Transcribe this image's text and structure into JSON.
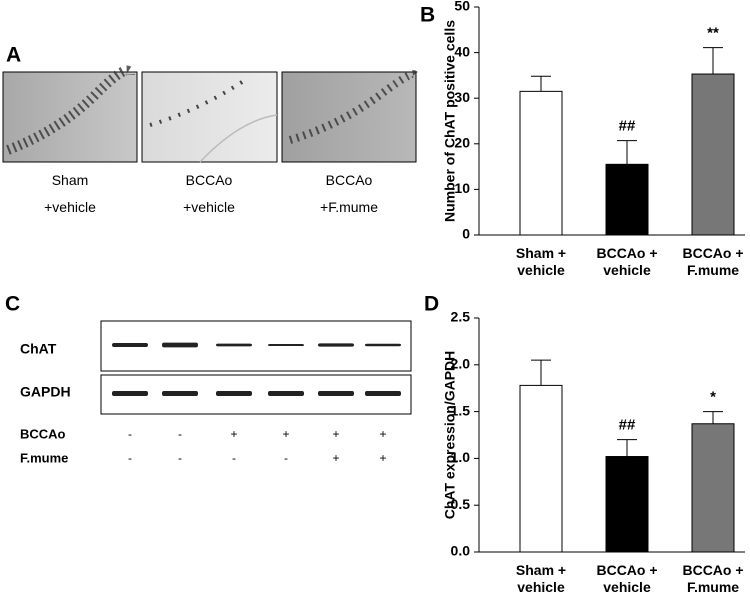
{
  "panels": {
    "a": {
      "label": "A",
      "images": [
        "Sham\n+vehicle",
        "BCCAo\n+vehicle",
        "BCCAo\n+F.mume"
      ]
    },
    "c": {
      "label": "C",
      "rows": [
        "ChAT",
        "GAPDH"
      ],
      "conditions": [
        {
          "name": "BCCAo",
          "signs": [
            "-",
            "-",
            "+",
            "+",
            "+",
            "+"
          ]
        },
        {
          "name": "F.mume",
          "signs": [
            "-",
            "-",
            "-",
            "-",
            "+",
            "+"
          ]
        }
      ]
    }
  },
  "chart_data": [
    {
      "type": "bar",
      "panel_label": "B",
      "ylabel": "Number of ChAT positive cells",
      "categories": [
        "Sham +\nvehicle",
        "BCCAo +\nvehicle",
        "BCCAo +\nF.mume"
      ],
      "values": [
        31.5,
        15.5,
        35.3
      ],
      "errors": [
        3.3,
        5.2,
        5.8
      ],
      "annotations": [
        null,
        "##",
        "**"
      ],
      "colors": [
        "#ffffff",
        "#000000",
        "#777777"
      ],
      "ylim": [
        0,
        50
      ],
      "yticks": [
        0,
        10,
        20,
        30,
        40,
        50
      ]
    },
    {
      "type": "bar",
      "panel_label": "D",
      "ylabel": "ChAT expression/GAPDH",
      "categories": [
        "Sham +\nvehicle",
        "BCCAo +\nvehicle",
        "BCCAo +\nF.mume"
      ],
      "values": [
        1.78,
        1.02,
        1.37
      ],
      "errors": [
        0.27,
        0.18,
        0.13
      ],
      "annotations": [
        null,
        "##",
        "*"
      ],
      "colors": [
        "#ffffff",
        "#000000",
        "#777777"
      ],
      "ylim": [
        0,
        2.5
      ],
      "yticks": [
        {
          "value": 0,
          "label": "0.0"
        },
        0.5,
        {
          "value": 1,
          "label": "1.0"
        },
        1.5,
        {
          "value": 2,
          "label": "2.0"
        },
        2.5
      ]
    }
  ]
}
